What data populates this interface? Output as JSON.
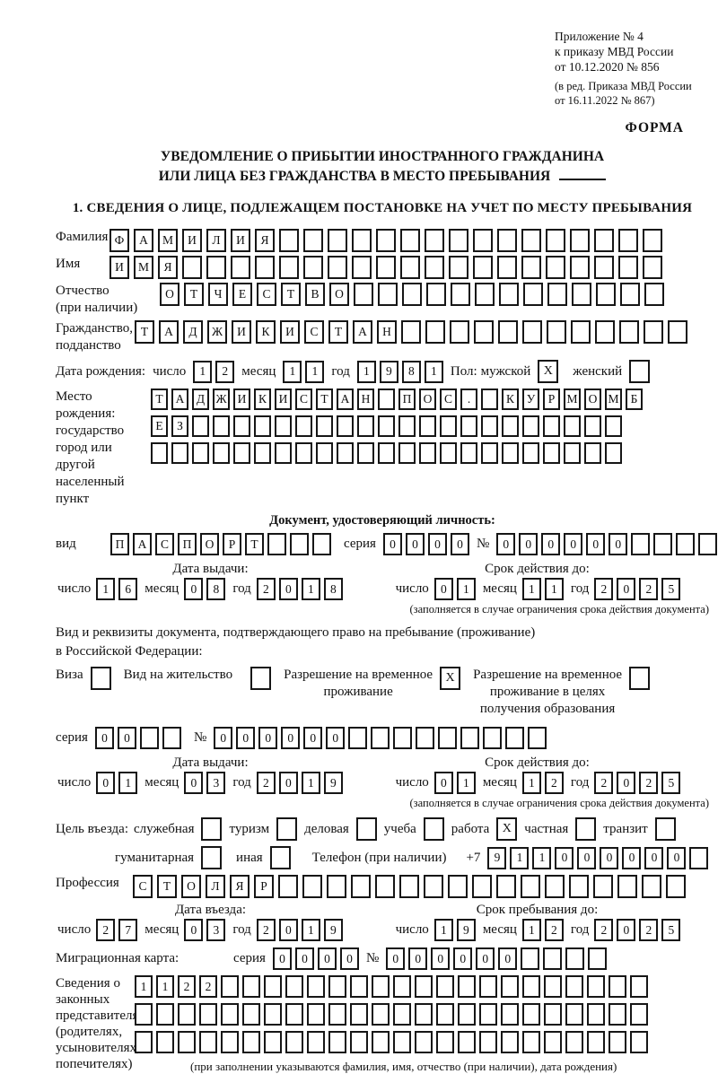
{
  "colors": {
    "ink": "#161616",
    "paper": "#ffffff"
  },
  "header": {
    "appendix_line1": "Приложение № 4",
    "appendix_line2": "к приказу МВД России",
    "appendix_line3": "от 10.12.2020 № 856",
    "revision_line1": "(в ред. Приказа МВД России",
    "revision_line2": "от 16.11.2022 № 867)",
    "form_label": "ФОРМА"
  },
  "title": {
    "line1": "УВЕДОМЛЕНИЕ О ПРИБЫТИИ ИНОСТРАННОГО ГРАЖДАНИНА",
    "line2": "ИЛИ ЛИЦА БЕЗ ГРАЖДАНСТВА В МЕСТО ПРЕБЫВАНИЯ"
  },
  "section1_heading": "1. СВЕДЕНИЯ О ЛИЦЕ, ПОДЛЕЖАЩЕМ ПОСТАНОВКЕ НА УЧЕТ ПО МЕСТУ ПРЕБЫВАНИЯ",
  "person": {
    "surname": {
      "label": "Фамилия",
      "cells": {
        "v": "ФАМИЛИЯ",
        "n": 23
      }
    },
    "firstname": {
      "label": "Имя",
      "cells": {
        "v": "ИМЯ",
        "n": 23
      }
    },
    "patronymic": {
      "label1": "Отчество",
      "label2": "(при наличии)",
      "cells": {
        "v": "ОТЧЕСТВО",
        "n": 21
      }
    },
    "citizenship": {
      "label1": "Гражданство,",
      "label2": "подданство",
      "cells": {
        "v": "ТАДЖИКИСТАН",
        "n": 23
      }
    },
    "birthdate": {
      "label": "Дата рождения:",
      "day_label": "число",
      "day": {
        "v": "12",
        "n": 2
      },
      "month_label": "месяц",
      "month": {
        "v": "11",
        "n": 2
      },
      "year_label": "год",
      "year": {
        "v": "1981",
        "n": 4
      }
    },
    "sex": {
      "label": "Пол:",
      "male_label": "мужской",
      "male": {
        "v": "X",
        "n": 1
      },
      "female_label": "женский",
      "female": {
        "v": "",
        "n": 1
      }
    },
    "birthplace": {
      "label1": "Место рождения:",
      "label2": "государство",
      "label3": "город или другой",
      "label4": "населенный пункт",
      "row1": {
        "v": "ТАДЖИКИСТАН ПОС. КУРМОМБ",
        "n": 24
      },
      "row2": {
        "v": "ЕЗ",
        "n": 23
      },
      "row3": {
        "v": "",
        "n": 23
      }
    }
  },
  "identity_doc": {
    "heading": "Документ, удостоверяющий личность:",
    "kind_label": "вид",
    "kind": {
      "v": "ПАСПОРТ",
      "n": 10
    },
    "series_label": "серия",
    "series": {
      "v": "0000",
      "n": 4
    },
    "number_label": "№",
    "number": {
      "v": "000000",
      "n": 10
    },
    "issue_heading": "Дата выдачи:",
    "issue": {
      "day_label": "число",
      "day": {
        "v": "16",
        "n": 2
      },
      "month_label": "месяц",
      "month": {
        "v": "08",
        "n": 2
      },
      "year_label": "год",
      "year": {
        "v": "2018",
        "n": 4
      }
    },
    "expiry_heading": "Срок действия до:",
    "expiry": {
      "day_label": "число",
      "day": {
        "v": "01",
        "n": 2
      },
      "month_label": "месяц",
      "month": {
        "v": "11",
        "n": 2
      },
      "year_label": "год",
      "year": {
        "v": "2025",
        "n": 4
      }
    },
    "expiry_note": "(заполняется в случае ограничения срока действия документа)"
  },
  "residence_doc": {
    "intro_line1": "Вид и реквизиты документа, подтверждающего право на пребывание (проживание)",
    "intro_line2": "в Российской Федерации:",
    "visa_label": "Виза",
    "visa": {
      "v": "",
      "n": 1
    },
    "residence_permit_label": "Вид на жительство",
    "residence_permit": {
      "v": "",
      "n": 1
    },
    "temp_permit_label1": "Разрешение на временное",
    "temp_permit_label2": "проживание",
    "temp_permit": {
      "v": "X",
      "n": 1
    },
    "edu_permit_label1": "Разрешение на временное",
    "edu_permit_label2": "проживание в целях",
    "edu_permit_label3": "получения образования",
    "edu_permit": {
      "v": "",
      "n": 1
    },
    "series_label": "серия",
    "series": {
      "v": "00",
      "n": 4
    },
    "number_label": "№",
    "number": {
      "v": "000000",
      "n": 15
    },
    "issue_heading": "Дата выдачи:",
    "issue": {
      "day_label": "число",
      "day": {
        "v": "01",
        "n": 2
      },
      "month_label": "месяц",
      "month": {
        "v": "03",
        "n": 2
      },
      "year_label": "год",
      "year": {
        "v": "2019",
        "n": 4
      }
    },
    "expiry_heading": "Срок действия до:",
    "expiry": {
      "day_label": "число",
      "day": {
        "v": "01",
        "n": 2
      },
      "month_label": "месяц",
      "month": {
        "v": "12",
        "n": 2
      },
      "year_label": "год",
      "year": {
        "v": "2025",
        "n": 4
      }
    },
    "expiry_note": "(заполняется в случае ограничения срока действия документа)"
  },
  "visit": {
    "purpose_label": "Цель въезда:",
    "purposes": [
      {
        "label": "служебная",
        "box": {
          "v": "",
          "n": 1
        }
      },
      {
        "label": "туризм",
        "box": {
          "v": "",
          "n": 1
        }
      },
      {
        "label": "деловая",
        "box": {
          "v": "",
          "n": 1
        }
      },
      {
        "label": "учеба",
        "box": {
          "v": "",
          "n": 1
        }
      },
      {
        "label": "работа",
        "box": {
          "v": "X",
          "n": 1
        }
      },
      {
        "label": "частная",
        "box": {
          "v": "",
          "n": 1
        }
      },
      {
        "label": "транзит",
        "box": {
          "v": "",
          "n": 1
        }
      }
    ],
    "purpose_hum_label": "гуманитарная",
    "purpose_hum": {
      "v": "",
      "n": 1
    },
    "purpose_other_label": "иная",
    "purpose_other": {
      "v": "",
      "n": 1
    },
    "phone_label": "Телефон (при наличии)",
    "phone_prefix": "+7",
    "phone": {
      "v": "911000000",
      "n": 10
    },
    "profession_label": "Профессия",
    "profession": {
      "v": "СТОЛЯР",
      "n": 23
    },
    "entry_heading": "Дата въезда:",
    "entry": {
      "day_label": "число",
      "day": {
        "v": "27",
        "n": 2
      },
      "month_label": "месяц",
      "month": {
        "v": "03",
        "n": 2
      },
      "year_label": "год",
      "year": {
        "v": "2019",
        "n": 4
      }
    },
    "stay_heading": "Срок пребывания до:",
    "stay": {
      "day_label": "число",
      "day": {
        "v": "19",
        "n": 2
      },
      "month_label": "месяц",
      "month": {
        "v": "12",
        "n": 2
      },
      "year_label": "год",
      "year": {
        "v": "2025",
        "n": 4
      }
    }
  },
  "migration_card": {
    "label": "Миграционная карта:",
    "series_label": "серия",
    "series": {
      "v": "0000",
      "n": 4
    },
    "number_label": "№",
    "number": {
      "v": "000000",
      "n": 10
    }
  },
  "representatives": {
    "label1": "Сведения о",
    "label2": "законных",
    "label3": "представителях",
    "label4": "(родителях,",
    "label5": "усыновителях,",
    "label6": "попечителях)",
    "row1": {
      "v": "1122",
      "n": 24
    },
    "row2": {
      "v": "",
      "n": 24
    },
    "row3": {
      "v": "",
      "n": 24
    },
    "note": "(при заполнении указываются фамилия, имя, отчество (при наличии), дата рождения)"
  }
}
